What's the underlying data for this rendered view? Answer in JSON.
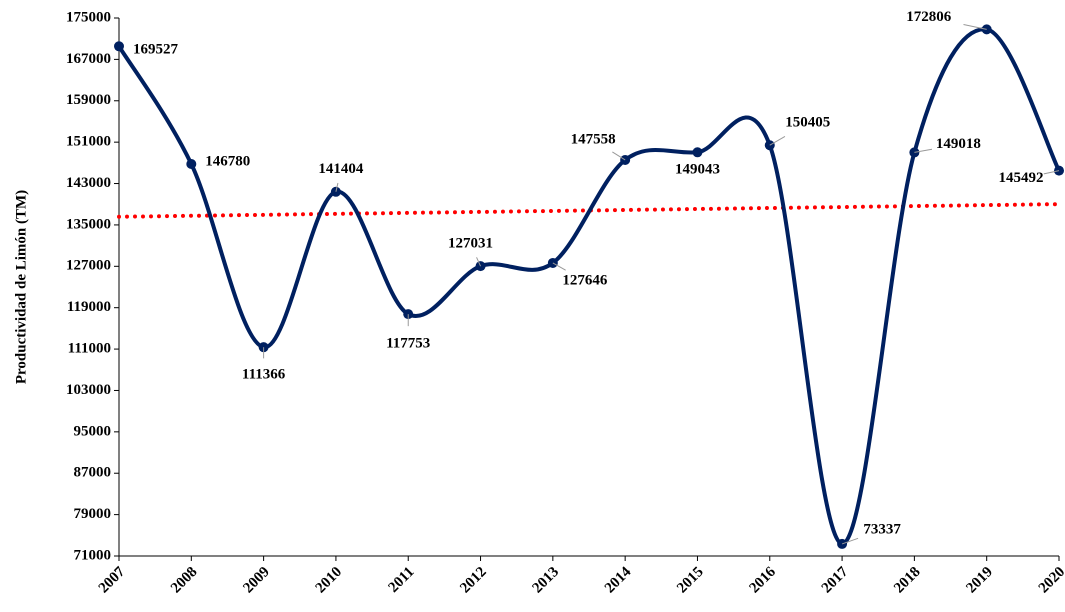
{
  "chart_data": {
    "type": "line",
    "y_label": "Productividad de Limón (TM)",
    "x": [
      "2007",
      "2008",
      "2009",
      "2010",
      "2011",
      "2012",
      "2013",
      "2014",
      "2015",
      "2016",
      "2017",
      "2018",
      "2019",
      "2020"
    ],
    "series": [
      {
        "name": "Productividad",
        "color": "#002060",
        "values": [
          169527,
          146780,
          111366,
          141404,
          117753,
          127031,
          127646,
          147558,
          149043,
          150405,
          73337,
          149018,
          172806,
          145492
        ]
      }
    ],
    "trendline": {
      "color": "#ff0000"
    },
    "ylim": [
      71000,
      175000
    ],
    "yticks": [
      71000,
      79000,
      87000,
      95000,
      103000,
      111000,
      119000,
      127000,
      135000,
      143000,
      151000,
      159000,
      167000,
      175000
    ]
  }
}
